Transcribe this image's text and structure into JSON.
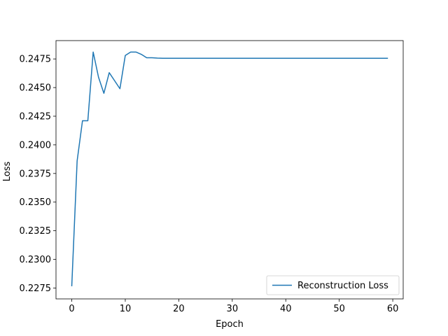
{
  "chart_data": {
    "type": "line",
    "title": "",
    "xlabel": "Epoch",
    "ylabel": "Loss",
    "xlim": [
      -2.95,
      61.95
    ],
    "ylim": [
      0.22655,
      0.2491
    ],
    "xticks": [
      0,
      10,
      20,
      30,
      40,
      50,
      60
    ],
    "xtick_labels": [
      "0",
      "10",
      "20",
      "30",
      "40",
      "50",
      "60"
    ],
    "yticks": [
      0.2275,
      0.23,
      0.2325,
      0.235,
      0.2375,
      0.24,
      0.2425,
      0.245,
      0.2475
    ],
    "ytick_labels": [
      "0.2275",
      "0.2300",
      "0.2325",
      "0.2350",
      "0.2375",
      "0.2400",
      "0.2425",
      "0.2450",
      "0.2475"
    ],
    "grid": false,
    "legend_position": "lower-right",
    "series": [
      {
        "name": "Reconstruction Loss",
        "color": "#1f77b4",
        "x": [
          0,
          1,
          2,
          3,
          4,
          5,
          6,
          7,
          8,
          9,
          10,
          11,
          12,
          13,
          14,
          15,
          16,
          17,
          18,
          19,
          20,
          21,
          22,
          23,
          24,
          25,
          26,
          27,
          28,
          29,
          30,
          31,
          32,
          33,
          34,
          35,
          36,
          37,
          38,
          39,
          40,
          41,
          42,
          43,
          44,
          45,
          46,
          47,
          48,
          49,
          50,
          51,
          52,
          53,
          54,
          55,
          56,
          57,
          58,
          59
        ],
        "y": [
          0.2277,
          0.2386,
          0.2421,
          0.2421,
          0.2481,
          0.2459,
          0.2445,
          0.2463,
          0.2456,
          0.2449,
          0.2478,
          0.2481,
          0.2481,
          0.2479,
          0.2476,
          0.2476,
          0.24757,
          0.24756,
          0.24756,
          0.24756,
          0.24756,
          0.24756,
          0.24756,
          0.24756,
          0.24756,
          0.24756,
          0.24756,
          0.24756,
          0.24756,
          0.24756,
          0.24756,
          0.24756,
          0.24756,
          0.24756,
          0.24756,
          0.24756,
          0.24756,
          0.24756,
          0.24756,
          0.24756,
          0.24756,
          0.24756,
          0.24756,
          0.24756,
          0.24756,
          0.24756,
          0.24756,
          0.24756,
          0.24756,
          0.24756,
          0.24756,
          0.24756,
          0.24756,
          0.24756,
          0.24756,
          0.24756,
          0.24756,
          0.24756,
          0.24756,
          0.24756
        ]
      }
    ]
  }
}
